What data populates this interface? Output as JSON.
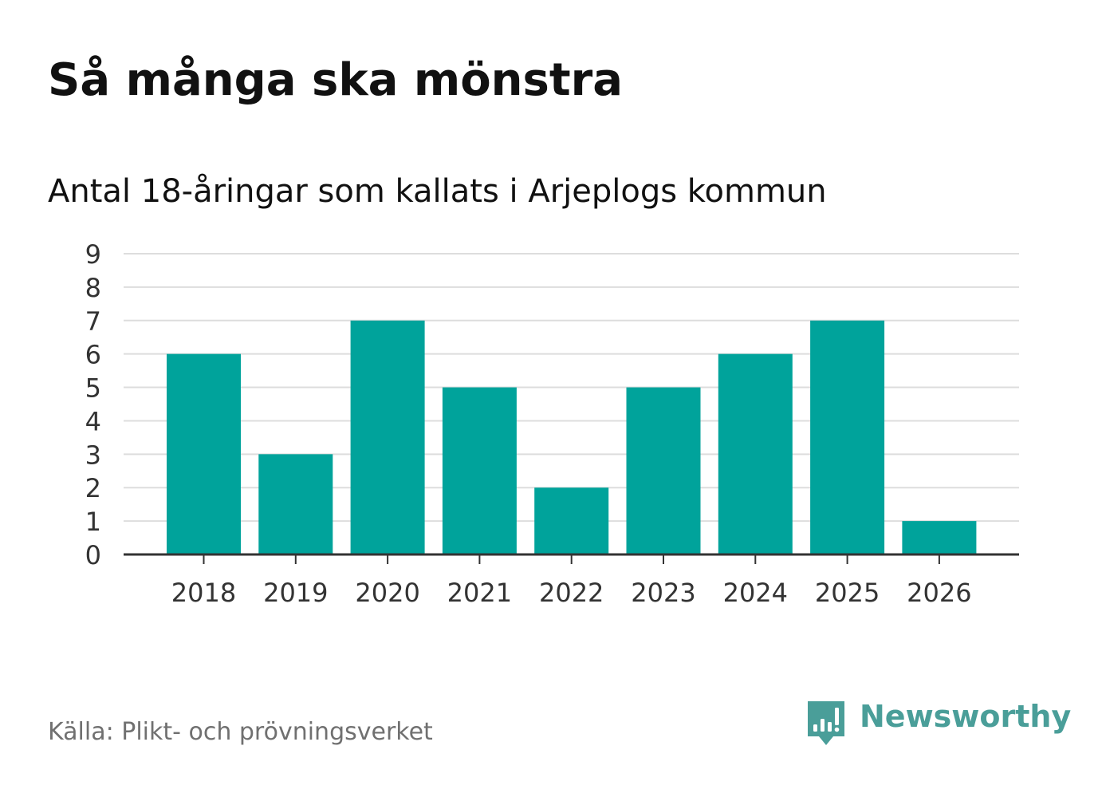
{
  "title": "Så många ska mönstra",
  "subtitle": "Antal 18-åringar som kallats i Arjeplogs kommun",
  "source": "Källa: Plikt- och prövningsverket",
  "brand": {
    "name": "Newsworthy",
    "logo_icon": "bar-chart-speech-bubble-icon",
    "color": "#4a9e99"
  },
  "colors": {
    "bar": "#00a39b",
    "grid": "#dddddd",
    "axis": "#333333"
  },
  "chart_data": {
    "type": "bar",
    "title": "Så många ska mönstra",
    "subtitle": "Antal 18-åringar som kallats i Arjeplogs kommun",
    "categories": [
      "2018",
      "2019",
      "2020",
      "2021",
      "2022",
      "2023",
      "2024",
      "2025",
      "2026"
    ],
    "values": [
      6,
      3,
      7,
      5,
      2,
      5,
      6,
      7,
      1
    ],
    "xlabel": "",
    "ylabel": "",
    "ylim": [
      0,
      9
    ],
    "yticks": [
      "0",
      "1",
      "2",
      "3",
      "4",
      "5",
      "6",
      "7",
      "8",
      "9"
    ],
    "grid": true,
    "legend": "none"
  }
}
